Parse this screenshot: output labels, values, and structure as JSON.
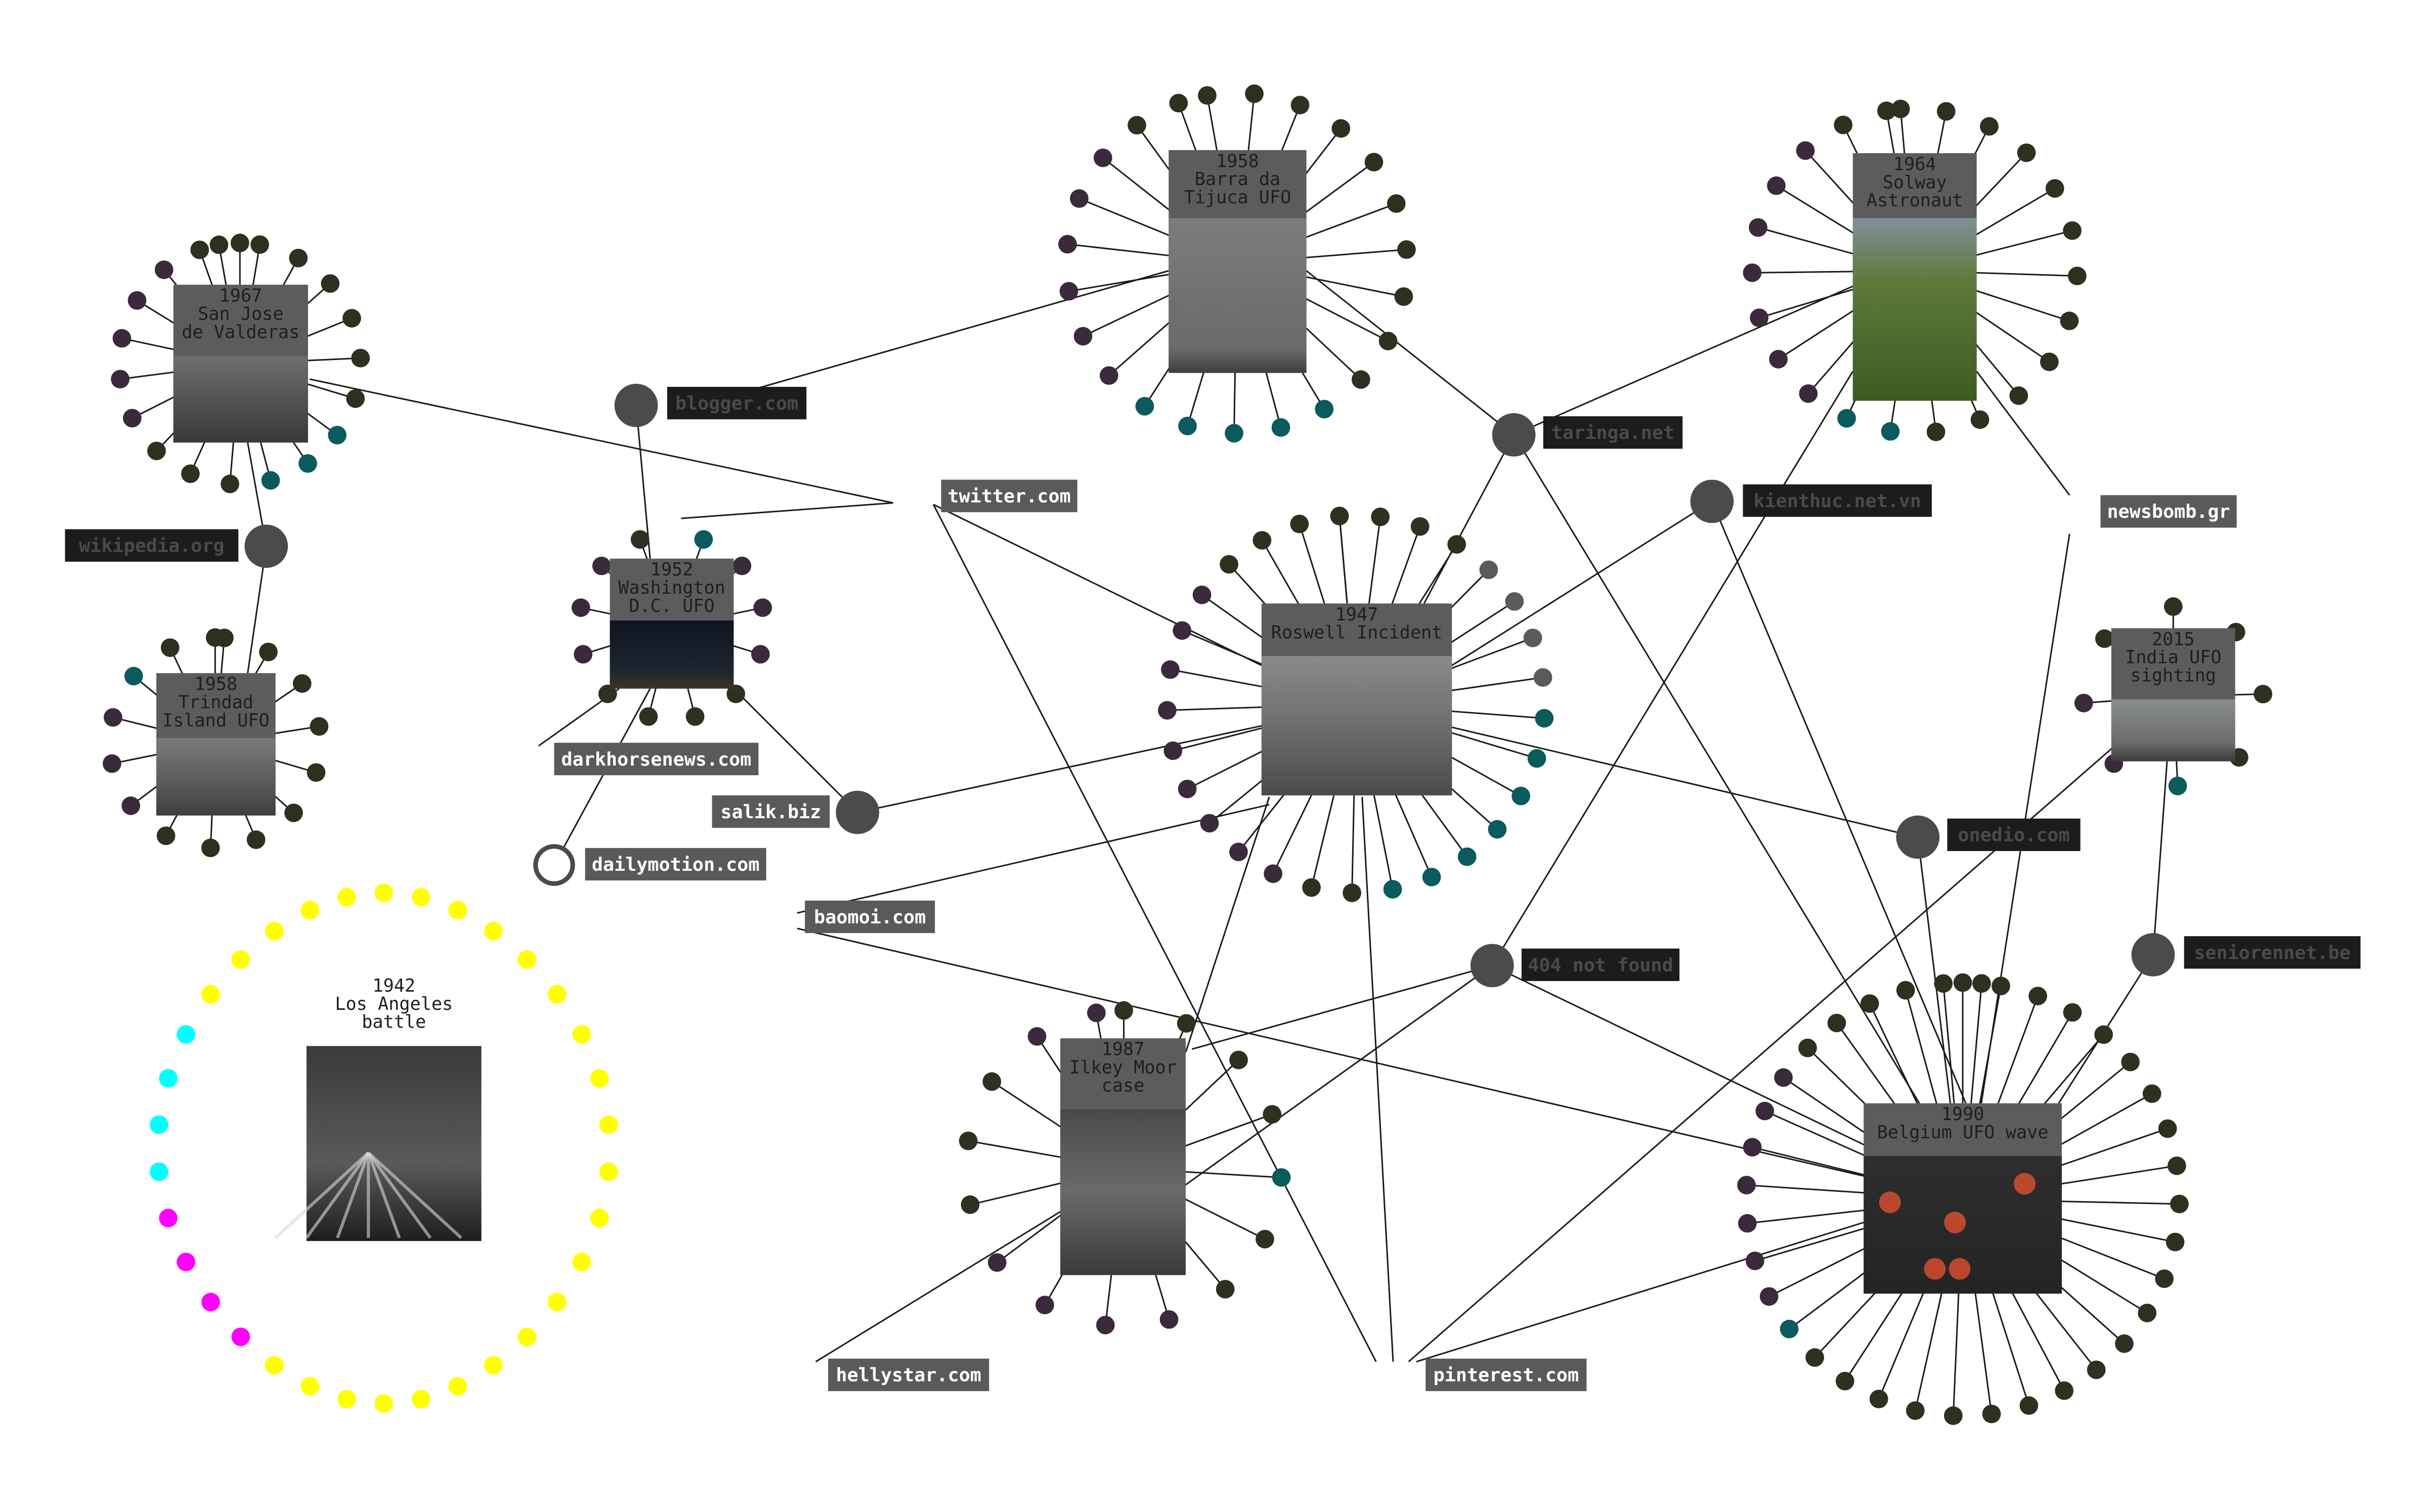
{
  "colors": {
    "edge": "#1a1a1a",
    "card": "#5c5c5c",
    "card_text": "#1e1e1e",
    "site_node": "#4b4b4b",
    "label_dark_bg": "#1c1c1c",
    "label_dark_text": "#4a4a4a",
    "label_light_bg": "#5a5a5a",
    "label_light_text": "#ffffff",
    "dot_dark": "#2e3020",
    "dot_purple": "#3a2a3c",
    "dot_teal": "#0b5a5e",
    "dot_gray": "#5a5a5a",
    "dot_yellow": "#ffff00",
    "dot_magenta": "#ff00ff",
    "dot_cyan": "#00ffff"
  },
  "events": [
    {
      "id": "sanjose",
      "lines": [
        "1967",
        "San Jose",
        "de Valderas"
      ],
      "image": "grainy-field-photo"
    },
    {
      "id": "trindad",
      "lines": [
        "1958",
        "Trindad",
        "Island UFO"
      ],
      "image": "island-photo"
    },
    {
      "id": "washington",
      "lines": [
        "1952",
        "Washington",
        "D.C. UFO"
      ],
      "image": "capitol-night-photo"
    },
    {
      "id": "barra",
      "lines": [
        "1958",
        "Barra da",
        "Tijuca UFO"
      ],
      "image": "gray-sky-photo"
    },
    {
      "id": "solway",
      "lines": [
        "1964",
        "Solway",
        "Astronaut"
      ],
      "image": "child-portrait-photo"
    },
    {
      "id": "roswell",
      "lines": [
        "1947",
        "Roswell Incident"
      ],
      "image": "alien-autopsy-photo"
    },
    {
      "id": "india",
      "lines": [
        "2015",
        "India UFO",
        "sighting"
      ],
      "image": "sky-photo"
    },
    {
      "id": "ilkley",
      "lines": [
        "1987",
        "Ilkey Moor",
        "case"
      ],
      "image": "blurry-photo"
    },
    {
      "id": "belgium",
      "lines": [
        "1990",
        "Belgium UFO wave"
      ],
      "image": "triangle-lights-photo"
    },
    {
      "id": "losangeles",
      "lines": [
        "1942",
        "Los Angeles",
        "battle"
      ],
      "image": "searchlights-photo"
    }
  ],
  "sites": [
    {
      "id": "blogger",
      "label": "blogger.com"
    },
    {
      "id": "twitter",
      "label": "twitter.com"
    },
    {
      "id": "wikipedia",
      "label": "wikipedia.org"
    },
    {
      "id": "taringa",
      "label": "taringa.net"
    },
    {
      "id": "kienthuc",
      "label": "kienthuc.net.vn"
    },
    {
      "id": "newsbomb",
      "label": "newsbomb.gr"
    },
    {
      "id": "darkhorse",
      "label": "darkhorsenews.com"
    },
    {
      "id": "dailymotion",
      "label": "dailymotion.com"
    },
    {
      "id": "salik",
      "label": "salik.biz"
    },
    {
      "id": "baomoi",
      "label": "baomoi.com"
    },
    {
      "id": "onedio",
      "label": "onedio.com"
    },
    {
      "id": "notfound",
      "label": "404 not found"
    },
    {
      "id": "seniorennet",
      "label": "seniorennet.be"
    },
    {
      "id": "hellystar",
      "label": "hellystar.com"
    },
    {
      "id": "pinterest",
      "label": "pinterest.com"
    }
  ]
}
